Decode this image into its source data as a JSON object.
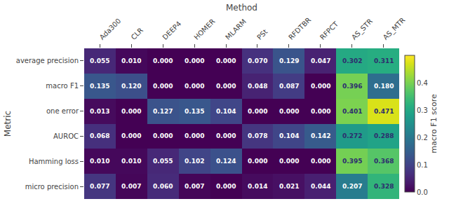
{
  "chart_data": {
    "type": "heatmap",
    "xlabel": "Method",
    "ylabel": "Metric",
    "categories": [
      "Ada300",
      "CLR",
      "DEEP4",
      "HOMER",
      "MLARM",
      "PSt",
      "RFDTBR",
      "RFPCT",
      "AS_STR",
      "AS_MTR"
    ],
    "rows": [
      "average precision",
      "macro F1",
      "one error",
      "AUROC",
      "Hamming loss",
      "micro precision"
    ],
    "values": [
      [
        0.055,
        0.01,
        0.0,
        0.0,
        0.0,
        0.07,
        0.129,
        0.047,
        0.302,
        0.311
      ],
      [
        0.135,
        0.12,
        0.0,
        0.0,
        0.0,
        0.048,
        0.087,
        0.0,
        0.396,
        0.18
      ],
      [
        0.013,
        0.0,
        0.127,
        0.135,
        0.104,
        0.0,
        0.0,
        0.0,
        0.401,
        0.471
      ],
      [
        0.068,
        0.0,
        0.0,
        0.0,
        0.0,
        0.078,
        0.104,
        0.142,
        0.272,
        0.288
      ],
      [
        0.01,
        0.01,
        0.055,
        0.102,
        0.124,
        0.0,
        0.0,
        0.0,
        0.395,
        0.368
      ],
      [
        0.077,
        0.007,
        0.06,
        0.007,
        0.0,
        0.014,
        0.021,
        0.044,
        0.207,
        0.328
      ]
    ],
    "value_labels": [
      [
        "0.055",
        "0.010",
        "0.000",
        "0.000",
        "0.000",
        "0.070",
        "0.129",
        "0.047",
        "0.302",
        "0.311"
      ],
      [
        "0.135",
        "0.120",
        "0.000",
        "0.000",
        "0.000",
        "0.048",
        "0.087",
        "0.000",
        "0.396",
        "0.180"
      ],
      [
        "0.013",
        "0.000",
        "0.127",
        "0.135",
        "0.104",
        "0.000",
        "0.000",
        "0.000",
        "0.401",
        "0.471"
      ],
      [
        "0.068",
        "0.000",
        "0.000",
        "0.000",
        "0.000",
        "0.078",
        "0.104",
        "0.142",
        "0.272",
        "0.288"
      ],
      [
        "0.010",
        "0.010",
        "0.055",
        "0.102",
        "0.124",
        "0.000",
        "0.000",
        "0.000",
        "0.395",
        "0.368"
      ],
      [
        "0.077",
        "0.007",
        "0.060",
        "0.007",
        "0.000",
        "0.014",
        "0.021",
        "0.044",
        "0.207",
        "0.328"
      ]
    ],
    "data_labels": true,
    "grid": false,
    "colorbar": {
      "label": "macro F1 score",
      "range": [
        0,
        0.5
      ],
      "ticks": [
        {
          "value": 0,
          "label": "0.0"
        },
        0.1,
        0.2,
        0.3,
        0.4
      ]
    }
  }
}
